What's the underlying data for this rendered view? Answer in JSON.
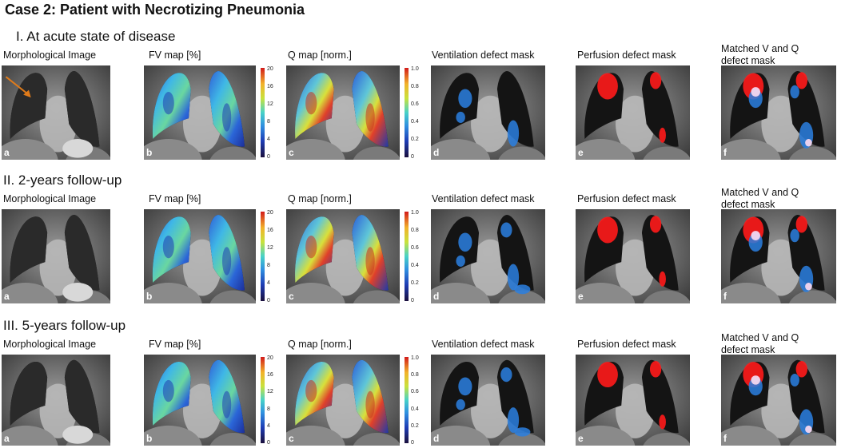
{
  "title": "Case 2: Patient with Necrotizing Pneumonia",
  "colors": {
    "ventilation_defect": "#2a7fe0",
    "perfusion_defect": "#ff1a1a",
    "matched_defect": "#f4d6ee",
    "arrow": "#e07b1a"
  },
  "sections": [
    {
      "title": "I. At acute state of disease",
      "labels": [
        "Morphological Image",
        "FV map [%]",
        "Q map [norm.]",
        "Ventilation defect mask",
        "Perfusion defect mask",
        "Matched V and Q",
        "defect mask"
      ]
    },
    {
      "title": "II. 2-years follow-up",
      "labels": [
        "Morphological Image",
        "FV map [%]",
        "Q map [norm.]",
        "Ventilation defect mask",
        "Perfusion defect mask",
        "Matched V and Q",
        "defect mask"
      ]
    },
    {
      "title": "III. 5-years follow-up",
      "labels": [
        "Morphological Image",
        "FV map [%]",
        "Q map [norm.]",
        "Ventilation defect mask",
        "Perfusion defect mask",
        "Matched V and Q",
        "defect mask"
      ]
    }
  ],
  "panel_letters": [
    "a",
    "b",
    "c",
    "d",
    "e",
    "f"
  ],
  "fv_scale": [
    "20",
    "16",
    "12",
    "8",
    "4",
    "0"
  ],
  "q_scale": [
    "1.0",
    "0.8",
    "0.6",
    "0.4",
    "0.2",
    "0"
  ]
}
